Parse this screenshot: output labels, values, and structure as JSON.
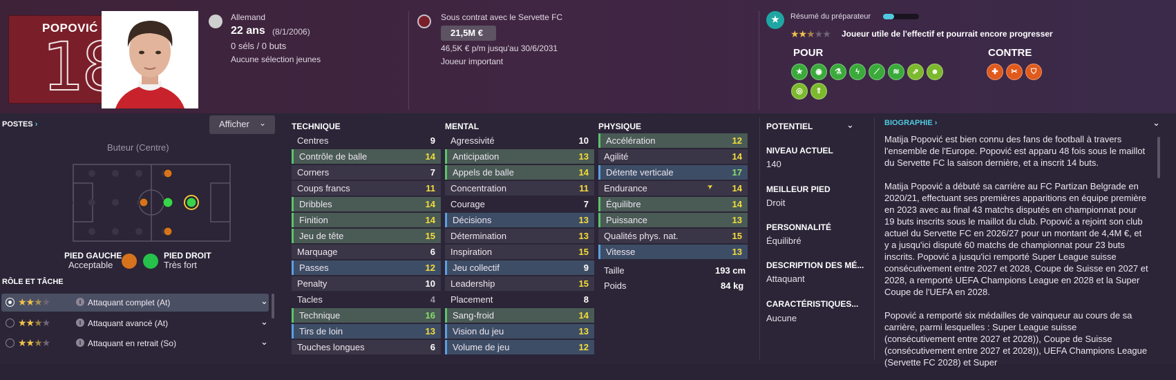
{
  "player": {
    "name": "POPOVIĆ",
    "number": "18",
    "nationality": "Allemand",
    "age": "22 ans",
    "dob": "(8/1/2006)",
    "caps": "0 séls / 0 buts",
    "youth": "Aucune sélection jeunes"
  },
  "contract": {
    "club": "Sous contrat avec le Servette FC",
    "value": "21,5M €",
    "wage": "46,5K € p/m jusqu'au 30/6/2031",
    "status": "Joueur important"
  },
  "scout": {
    "title": "Résumé du préparateur",
    "rating_stars": 2.5,
    "summary": "Joueur utile de l'effectif et pourrait encore progresser",
    "pour_label": "POUR",
    "contre_label": "CONTRE",
    "pour_icons": [
      "star-icon",
      "team-icon",
      "flask-icon",
      "lightning-icon",
      "boot-icon",
      "spring-icon",
      "run-icon",
      "head-icon",
      "target-icon",
      "arrows-up-icon"
    ],
    "contre_icons": [
      "injury-icon",
      "dribble-icon",
      "shield-icon"
    ]
  },
  "positions": {
    "title": "POSTES",
    "display_button": "Afficher",
    "label": "Buteur (Centre)",
    "left_foot_label": "PIED GAUCHE",
    "left_foot_value": "Acceptable",
    "right_foot_label": "PIED DROIT",
    "right_foot_value": "Très fort"
  },
  "roles": {
    "title": "RÔLE ET TÂCHE",
    "items": [
      {
        "name": "Attaquant complet (At)",
        "stars": 2.5
      },
      {
        "name": "Attaquant avancé (At)",
        "stars": 2.5
      },
      {
        "name": "Attaquant en retrait (So)",
        "stars": 2.5
      }
    ]
  },
  "technique": {
    "title": "TECHNIQUE",
    "items": [
      {
        "name": "Centres",
        "value": "9"
      },
      {
        "name": "Contrôle de balle",
        "value": "14"
      },
      {
        "name": "Corners",
        "value": "7"
      },
      {
        "name": "Coups francs",
        "value": "11"
      },
      {
        "name": "Dribbles",
        "value": "14"
      },
      {
        "name": "Finition",
        "value": "14"
      },
      {
        "name": "Jeu de tête",
        "value": "15"
      },
      {
        "name": "Marquage",
        "value": "6"
      },
      {
        "name": "Passes",
        "value": "12"
      },
      {
        "name": "Penalty",
        "value": "10"
      },
      {
        "name": "Tacles",
        "value": "4"
      },
      {
        "name": "Technique",
        "value": "16"
      },
      {
        "name": "Tirs de loin",
        "value": "13"
      },
      {
        "name": "Touches longues",
        "value": "6"
      }
    ]
  },
  "mental": {
    "title": "MENTAL",
    "items": [
      {
        "name": "Agressivité",
        "value": "10"
      },
      {
        "name": "Anticipation",
        "value": "13"
      },
      {
        "name": "Appels de balle",
        "value": "14"
      },
      {
        "name": "Concentration",
        "value": "11"
      },
      {
        "name": "Courage",
        "value": "7"
      },
      {
        "name": "Décisions",
        "value": "13"
      },
      {
        "name": "Détermination",
        "value": "13"
      },
      {
        "name": "Inspiration",
        "value": "15"
      },
      {
        "name": "Jeu collectif",
        "value": "9"
      },
      {
        "name": "Leadership",
        "value": "15"
      },
      {
        "name": "Placement",
        "value": "8"
      },
      {
        "name": "Sang-froid",
        "value": "14"
      },
      {
        "name": "Vision du jeu",
        "value": "13"
      },
      {
        "name": "Volume de jeu",
        "value": "12"
      }
    ]
  },
  "physique": {
    "title": "PHYSIQUE",
    "items": [
      {
        "name": "Accélération",
        "value": "12"
      },
      {
        "name": "Agilité",
        "value": "14"
      },
      {
        "name": "Détente verticale",
        "value": "17"
      },
      {
        "name": "Endurance",
        "value": "14"
      },
      {
        "name": "Équilibre",
        "value": "14"
      },
      {
        "name": "Puissance",
        "value": "13"
      },
      {
        "name": "Qualités phys. nat.",
        "value": "15"
      },
      {
        "name": "Vitesse",
        "value": "13"
      }
    ],
    "height_label": "Taille",
    "height": "193 cm",
    "weight_label": "Poids",
    "weight": "84 kg"
  },
  "info": {
    "potential_label": "POTENTIEL",
    "current_level_label": "NIVEAU ACTUEL",
    "current_level": "140",
    "best_foot_label": "MEILLEUR PIED",
    "best_foot": "Droit",
    "personality_label": "PERSONNALITÉ",
    "personality": "Équilibré",
    "media_label": "DESCRIPTION DES MÉ...",
    "media": "Attaquant",
    "traits_label": "CARACTÉRISTIQUES...",
    "traits": "Aucune"
  },
  "bio": {
    "title": "BIOGRAPHIE",
    "p1": "Matija Popović est bien connu des fans de football à travers l'ensemble de l'Europe. Popović est apparu 48 fois sous le maillot du Servette FC la saison dernière, et a inscrit 14 buts.",
    "p2": "Matija Popović a débuté sa carrière au FC Partizan Belgrade en 2020/21, effectuant ses premières apparitions en équipe première en 2023 avec au final 43 matchs disputés en championnat pour 19 buts inscrits sous le maillot du club. Popović a rejoint son club actuel du Servette FC en 2026/27 pour un montant de 4,4M €, et y a jusqu'ici disputé 60 matchs de championnat pour 23 buts inscrits. Popović a jusqu'ici remporté Super League suisse consécutivement entre 2027 et 2028, Coupe de Suisse en 2027 et 2028, a remporté UEFA Champions League en 2028 et la Super Coupe de l'UEFA en 2028.",
    "p3": "Popović a remporté six médailles de vainqueur au cours de sa carrière, parmi lesquelles : Super League suisse (consécutivement entre 2027 et 2028)), Coupe de Suisse (consécutivement entre 2027 et 2028)), UEFA Champions League (Servette FC 2028) et Super"
  }
}
